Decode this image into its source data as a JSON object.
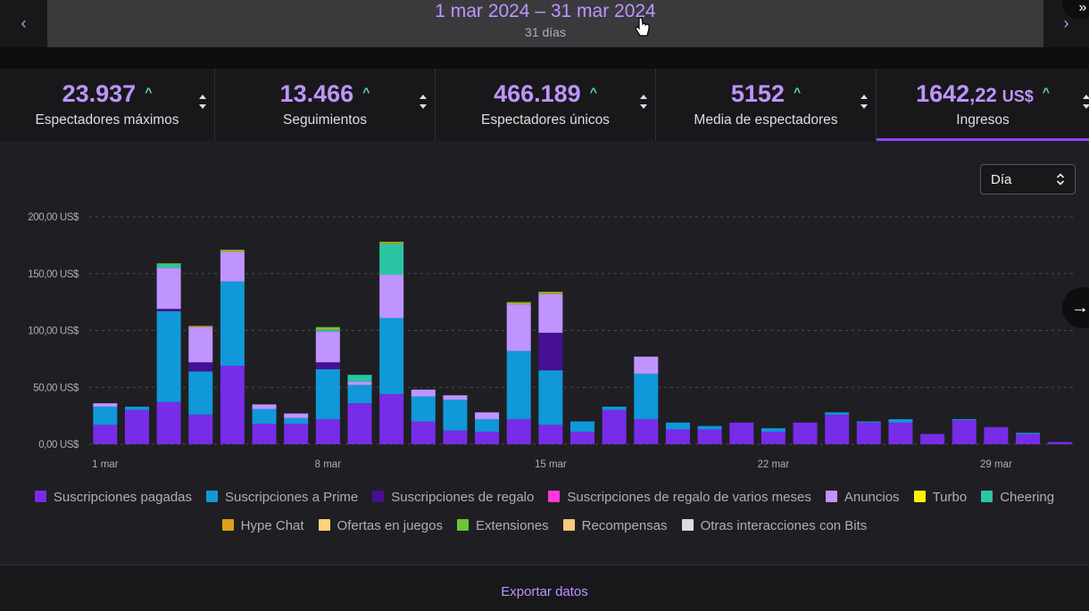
{
  "nav": {
    "prev_icon": "‹",
    "next_icon": "›",
    "date_range": "1 mar 2024 – 31 mar 2024",
    "days": "31 días",
    "corner_icon": "»"
  },
  "stats": [
    {
      "value": "23.937",
      "label": "Espectadores máximos"
    },
    {
      "value": "13.466",
      "label": "Seguimientos"
    },
    {
      "value": "466.189",
      "label": "Espectadores únicos"
    },
    {
      "value": "5152",
      "label": "Media de espectadores"
    },
    {
      "value": "1642",
      "decimals": ",22",
      "currency": "US$",
      "label": "Ingresos"
    }
  ],
  "trend_icon": "^",
  "period_select": {
    "value": "Día"
  },
  "next_arrow": "→",
  "chart_data": {
    "type": "bar",
    "stacked": true,
    "ylim": [
      0,
      200
    ],
    "yticks": [
      "0,00 US$",
      "50,00 US$",
      "100,00 US$",
      "150,00 US$",
      "200,00 US$"
    ],
    "ytick_values": [
      0,
      50,
      100,
      150,
      200
    ],
    "xtick_labels": [
      {
        "day": 1,
        "label": "1 mar"
      },
      {
        "day": 8,
        "label": "8 mar"
      },
      {
        "day": 15,
        "label": "15 mar"
      },
      {
        "day": 22,
        "label": "22 mar"
      },
      {
        "day": 29,
        "label": "29 mar"
      }
    ],
    "categories": [
      "1",
      "2",
      "3",
      "4",
      "5",
      "6",
      "7",
      "8",
      "9",
      "10",
      "11",
      "12",
      "13",
      "14",
      "15",
      "16",
      "17",
      "18",
      "19",
      "20",
      "21",
      "22",
      "23",
      "24",
      "25",
      "26",
      "27",
      "28",
      "29",
      "30",
      "31"
    ],
    "series": [
      {
        "name": "Suscripciones pagadas",
        "color": "#772ce8",
        "values": [
          17,
          30,
          37,
          26,
          69,
          18,
          18,
          22,
          36,
          44,
          20,
          12,
          11,
          22,
          17,
          11,
          30,
          22,
          13,
          13,
          19,
          11,
          19,
          26,
          19,
          19,
          9,
          21,
          15,
          9,
          2
        ]
      },
      {
        "name": "Suscripciones a Prime",
        "color": "#1098d8",
        "values": [
          16,
          3,
          80,
          38,
          74,
          13,
          5,
          44,
          16,
          67,
          22,
          27,
          11,
          60,
          48,
          9,
          3,
          40,
          6,
          3,
          0,
          3,
          0,
          2,
          1,
          3,
          0,
          1,
          0,
          1,
          0
        ]
      },
      {
        "name": "Suscripciones de regalo",
        "color": "#451093",
        "values": [
          0,
          0,
          2,
          8,
          0,
          0,
          0,
          6,
          0,
          0,
          0,
          0,
          0,
          0,
          33,
          0,
          0,
          0,
          0,
          0,
          0,
          0,
          0,
          0,
          0,
          0,
          0,
          0,
          0,
          0,
          0
        ]
      },
      {
        "name": "Suscripciones de regalo de varios meses",
        "color": "#ff38db",
        "values": [
          0,
          0,
          0,
          0,
          0,
          0,
          0,
          0,
          0,
          0,
          0,
          0,
          0,
          0,
          0,
          0,
          0,
          0,
          0,
          0,
          0,
          0,
          0,
          0,
          0,
          0,
          0,
          0,
          0,
          0,
          0
        ]
      },
      {
        "name": "Anuncios",
        "color": "#bf94ff",
        "values": [
          3,
          0,
          36,
          31,
          26,
          4,
          4,
          27,
          3,
          38,
          6,
          4,
          6,
          41,
          34,
          0,
          0,
          15,
          0,
          0,
          0,
          0,
          0,
          0,
          0,
          0,
          0,
          0,
          0,
          0,
          0
        ]
      },
      {
        "name": "Turbo",
        "color": "#fff200",
        "values": [
          0,
          0,
          0,
          0,
          0,
          0,
          0,
          0,
          0,
          0,
          0,
          0,
          0,
          0,
          0,
          0,
          0,
          0,
          0,
          0,
          0,
          0,
          0,
          0,
          0,
          0,
          0,
          0,
          0,
          0,
          0
        ]
      },
      {
        "name": "Cheering",
        "color": "#2bc5a4",
        "values": [
          0,
          0,
          3,
          0,
          0,
          0,
          0,
          2,
          6,
          27,
          0,
          0,
          0,
          0,
          0,
          0,
          0,
          0,
          0,
          0,
          0,
          0,
          0,
          0,
          0,
          0,
          0,
          0,
          0,
          0,
          0
        ]
      },
      {
        "name": "Hype Chat",
        "color": "#e0a01c",
        "values": [
          0,
          0,
          0,
          1,
          1,
          0,
          0,
          1,
          0,
          1,
          0,
          0,
          0,
          1,
          1,
          0,
          0,
          0,
          0,
          0,
          0,
          0,
          0,
          0,
          0,
          0,
          0,
          0,
          0,
          0,
          0
        ]
      },
      {
        "name": "Ofertas en juegos",
        "color": "#ffd37a",
        "values": [
          0,
          0,
          0,
          0,
          0,
          0,
          0,
          0,
          0,
          0,
          0,
          0,
          0,
          0,
          0,
          0,
          0,
          0,
          0,
          0,
          0,
          0,
          0,
          0,
          0,
          0,
          0,
          0,
          0,
          0,
          0
        ]
      },
      {
        "name": "Extensiones",
        "color": "#6cc539",
        "values": [
          0,
          0,
          1,
          0,
          1,
          0,
          0,
          1,
          0,
          1,
          0,
          0,
          0,
          1,
          1,
          0,
          0,
          0,
          0,
          0,
          0,
          0,
          0,
          0,
          0,
          0,
          0,
          0,
          0,
          0,
          0
        ]
      },
      {
        "name": "Recompensas",
        "color": "#f7c97a",
        "values": [
          0,
          0,
          0,
          0,
          0,
          0,
          0,
          0,
          0,
          0,
          0,
          0,
          0,
          0,
          0,
          0,
          0,
          0,
          0,
          0,
          0,
          0,
          0,
          0,
          0,
          0,
          0,
          0,
          0,
          0,
          0
        ]
      },
      {
        "name": "Otras interacciones con Bits",
        "color": "#dcdce0",
        "values": [
          0,
          0,
          0,
          0,
          0,
          0,
          0,
          0,
          0,
          0,
          0,
          0,
          0,
          0,
          0,
          0,
          0,
          0,
          0,
          0,
          0,
          0,
          0,
          0,
          0,
          0,
          0,
          0,
          0,
          0,
          0
        ]
      }
    ]
  },
  "export": {
    "label": "Exportar datos"
  }
}
